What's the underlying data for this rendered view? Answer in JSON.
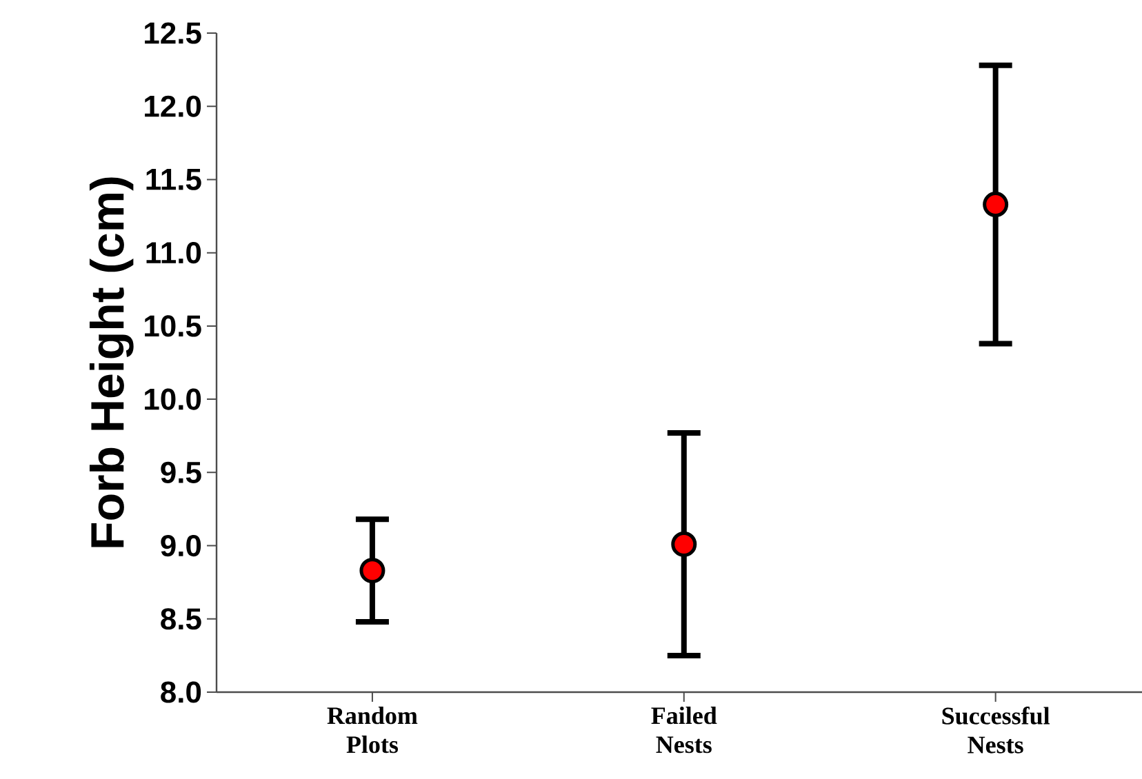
{
  "chart_data": {
    "type": "scatter",
    "ylabel": "Forb Height (cm)",
    "categories": [
      "Random Plots",
      "Failed Nests",
      "Successful Nests"
    ],
    "values": [
      8.83,
      9.01,
      11.33
    ],
    "errors": [
      0.35,
      0.76,
      0.95
    ],
    "color": "#ff0000",
    "marker": "circle",
    "ylim": [
      8.0,
      12.5
    ],
    "yticks": [
      {
        "value": 8.0,
        "label": "8.0"
      },
      {
        "value": 8.5,
        "label": "8.5"
      },
      {
        "value": 9.0,
        "label": "9.0"
      },
      {
        "value": 9.5,
        "label": "9.5"
      },
      {
        "value": 10.0,
        "label": "10.0"
      },
      {
        "value": 10.5,
        "label": "10.5"
      },
      {
        "value": 11.0,
        "label": "11.0"
      },
      {
        "value": 11.5,
        "label": "11.5"
      },
      {
        "value": 12.0,
        "label": "12.0"
      },
      {
        "value": 12.5,
        "label": "12.5"
      }
    ]
  }
}
